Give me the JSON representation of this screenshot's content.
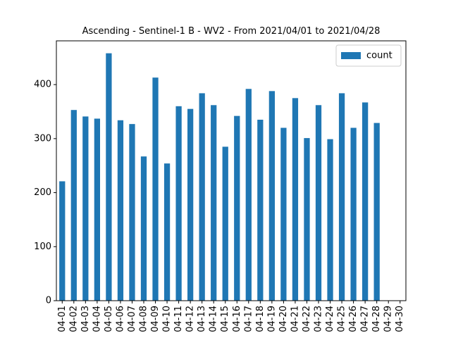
{
  "chart_data": {
    "type": "bar",
    "title": "Ascending - Sentinel-1 B - WV2 - From 2021/04/01 to 2021/04/28",
    "xlabel": "",
    "ylabel": "",
    "categories": [
      "04-01",
      "04-02",
      "04-03",
      "04-04",
      "04-05",
      "04-06",
      "04-07",
      "04-08",
      "04-09",
      "04-10",
      "04-11",
      "04-12",
      "04-13",
      "04-14",
      "04-15",
      "04-16",
      "04-17",
      "04-18",
      "04-19",
      "04-20",
      "04-21",
      "04-22",
      "04-23",
      "04-24",
      "04-25",
      "04-26",
      "04-27",
      "04-28",
      "04-29",
      "04-30"
    ],
    "series": [
      {
        "name": "count",
        "color": "#1f77b4",
        "values": [
          221,
          353,
          341,
          337,
          458,
          334,
          327,
          267,
          413,
          254,
          360,
          355,
          384,
          362,
          285,
          342,
          392,
          335,
          388,
          320,
          375,
          301,
          362,
          299,
          384,
          320,
          367,
          329,
          null,
          null
        ]
      }
    ],
    "yticks": [
      0,
      100,
      200,
      300,
      400
    ],
    "ylim": [
      0,
      481
    ],
    "grid": false,
    "legend_position": "top-right"
  }
}
